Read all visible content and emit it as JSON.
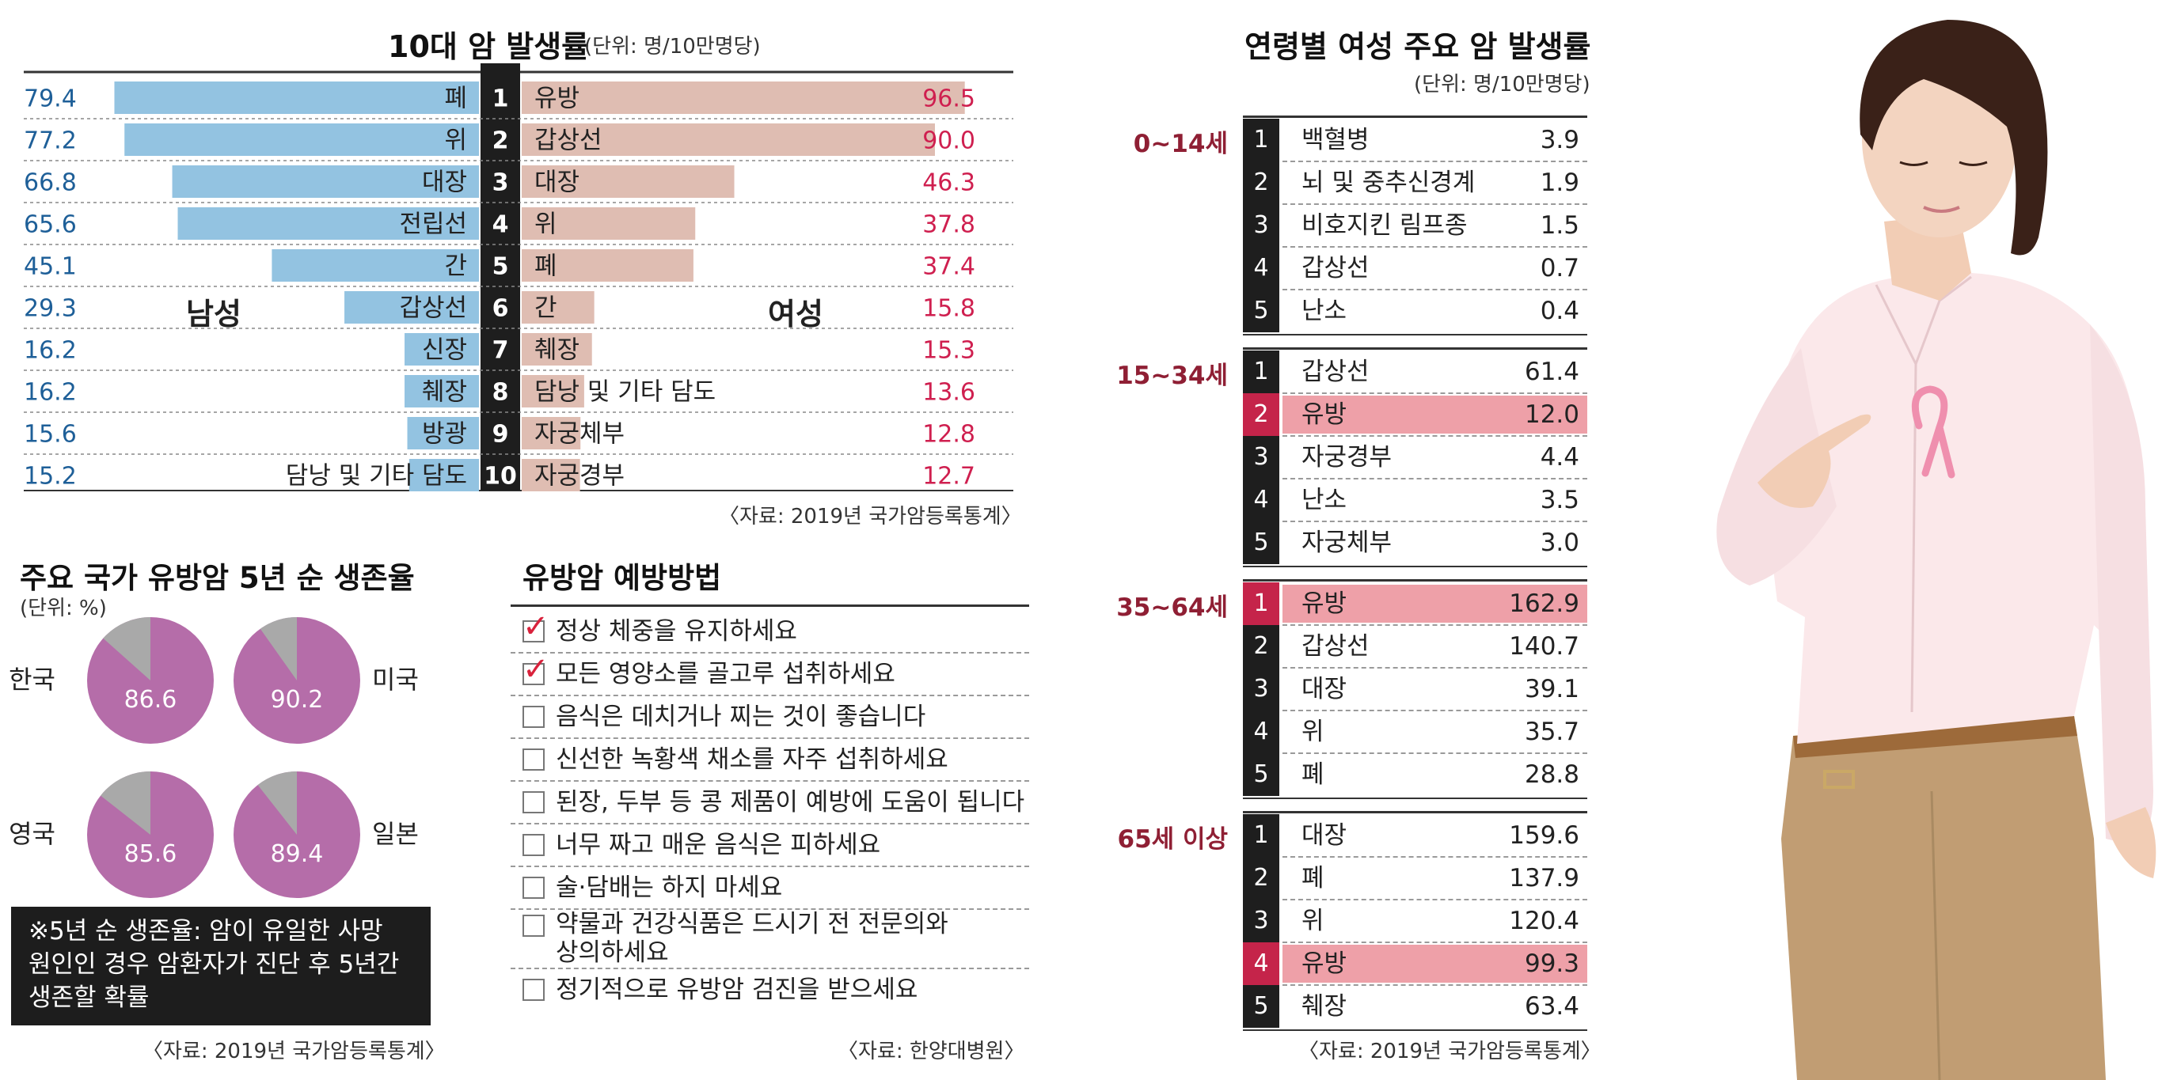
{
  "chart_data": [
    {
      "type": "bar",
      "title": "10대 암 발생률",
      "unit": "(단위: 명/10만명당)",
      "male_label": "남성",
      "female_label": "여성",
      "ranks": [
        "1",
        "2",
        "3",
        "4",
        "5",
        "6",
        "7",
        "8",
        "9",
        "10"
      ],
      "series": [
        {
          "name": "남성",
          "categories": [
            "폐",
            "위",
            "대장",
            "전립선",
            "간",
            "갑상선",
            "신장",
            "췌장",
            "방광",
            "담낭 및 기타 담도"
          ],
          "values": [
            79.4,
            77.2,
            66.8,
            65.6,
            45.1,
            29.3,
            16.2,
            16.2,
            15.6,
            15.2
          ],
          "labels": [
            "79.4",
            "77.2",
            "66.8",
            "65.6",
            "45.1",
            "29.3",
            "16.2",
            "16.2",
            "15.6",
            "15.2"
          ]
        },
        {
          "name": "여성",
          "categories": [
            "유방",
            "갑상선",
            "대장",
            "위",
            "폐",
            "간",
            "췌장",
            "담낭 및 기타 담도",
            "자궁체부",
            "자궁경부"
          ],
          "values": [
            96.5,
            90.0,
            46.3,
            37.8,
            37.4,
            15.8,
            15.3,
            13.6,
            12.8,
            12.7
          ],
          "labels": [
            "96.5",
            "90.0",
            "46.3",
            "37.8",
            "37.4",
            "15.8",
            "15.3",
            "13.6",
            "12.8",
            "12.7"
          ]
        }
      ],
      "xlim": [
        0,
        100
      ],
      "source": "〈자료: 2019년 국가암등록통계〉",
      "colors": {
        "male": "#93c3e1",
        "female": "#dfbdb2",
        "male_text": "#1e5f98",
        "female_text": "#cf1f4f"
      }
    },
    {
      "type": "pie",
      "title": "주요 국가 유방암 5년 순 생존율",
      "unit": "(단위: %)",
      "categories": [
        "한국",
        "미국",
        "영국",
        "일본"
      ],
      "values": [
        86.6,
        90.2,
        85.6,
        89.4
      ],
      "labels": [
        "86.6",
        "90.2",
        "85.6",
        "89.4"
      ],
      "note": "※5년 순 생존율: 암이 유일한 사망 원인인 경우 암환자가 진단 후 5년간 생존할 확률",
      "source": "〈자료: 2019년 국가암등록통계〉",
      "colors": {
        "survival": "#b56da9",
        "remainder": "#a9a9a9"
      }
    },
    {
      "type": "table",
      "title": "연령별 여성 주요 암 발생률",
      "unit": "(단위: 명/10만명당)",
      "groups": [
        {
          "age": "0~14세",
          "rows": [
            {
              "rank": "1",
              "name": "백혈병",
              "value": "3.9",
              "highlight": false
            },
            {
              "rank": "2",
              "name": "뇌 및 중추신경계",
              "value": "1.9",
              "highlight": false
            },
            {
              "rank": "3",
              "name": "비호지킨 림프종",
              "value": "1.5",
              "highlight": false
            },
            {
              "rank": "4",
              "name": "갑상선",
              "value": "0.7",
              "highlight": false
            },
            {
              "rank": "5",
              "name": "난소",
              "value": "0.4",
              "highlight": false
            }
          ]
        },
        {
          "age": "15~34세",
          "rows": [
            {
              "rank": "1",
              "name": "갑상선",
              "value": "61.4",
              "highlight": false
            },
            {
              "rank": "2",
              "name": "유방",
              "value": "12.0",
              "highlight": true
            },
            {
              "rank": "3",
              "name": "자궁경부",
              "value": "4.4",
              "highlight": false
            },
            {
              "rank": "4",
              "name": "난소",
              "value": "3.5",
              "highlight": false
            },
            {
              "rank": "5",
              "name": "자궁체부",
              "value": "3.0",
              "highlight": false
            }
          ]
        },
        {
          "age": "35~64세",
          "rows": [
            {
              "rank": "1",
              "name": "유방",
              "value": "162.9",
              "highlight": true
            },
            {
              "rank": "2",
              "name": "갑상선",
              "value": "140.7",
              "highlight": false
            },
            {
              "rank": "3",
              "name": "대장",
              "value": "39.1",
              "highlight": false
            },
            {
              "rank": "4",
              "name": "위",
              "value": "35.7",
              "highlight": false
            },
            {
              "rank": "5",
              "name": "폐",
              "value": "28.8",
              "highlight": false
            }
          ]
        },
        {
          "age": "65세 이상",
          "rows": [
            {
              "rank": "1",
              "name": "대장",
              "value": "159.6",
              "highlight": false
            },
            {
              "rank": "2",
              "name": "폐",
              "value": "137.9",
              "highlight": false
            },
            {
              "rank": "3",
              "name": "위",
              "value": "120.4",
              "highlight": false
            },
            {
              "rank": "4",
              "name": "유방",
              "value": "99.3",
              "highlight": true
            },
            {
              "rank": "5",
              "name": "췌장",
              "value": "63.4",
              "highlight": false
            }
          ]
        }
      ],
      "source": "〈자료: 2019년 국가암등록통계〉",
      "colors": {
        "highlight_row": "#eea0a8",
        "highlight_rank": "#c5244a",
        "age_label": "#8f1f34"
      }
    }
  ],
  "prevention": {
    "title": "유방암 예방방법",
    "items": [
      {
        "text": "정상 체중을 유지하세요",
        "checked": true
      },
      {
        "text": "모든 영양소를 골고루 섭취하세요",
        "checked": true
      },
      {
        "text": "음식은 데치거나 찌는 것이 좋습니다",
        "checked": false
      },
      {
        "text": "신선한 녹황색 채소를 자주 섭취하세요",
        "checked": false
      },
      {
        "text": "된장, 두부 등 콩 제품이 예방에 도움이 됩니다",
        "checked": false
      },
      {
        "text": "너무 짜고 매운 음식은 피하세요",
        "checked": false
      },
      {
        "text": "술·담배는 하지 마세요",
        "checked": false
      },
      {
        "text": "약물과 건강식품은 드시기 전 전문의와",
        "checked": false
      },
      {
        "text": "정기적으로 유방암 검진을 받으세요",
        "checked": false
      }
    ],
    "item8_line2": "상의하세요",
    "check_glyph": "✓",
    "source": "〈자료: 한양대병원〉"
  }
}
